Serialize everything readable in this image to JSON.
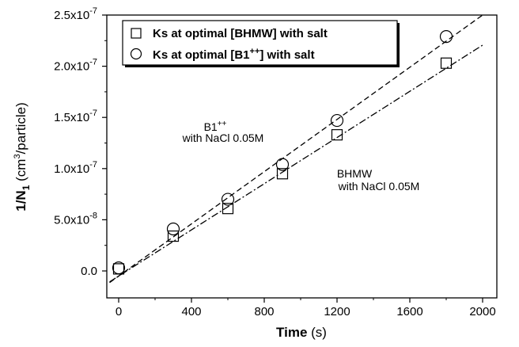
{
  "chart_data": {
    "type": "scatter",
    "xlabel_main": "Time",
    "xlabel_unit": " (s)",
    "ylabel_main": "1/N",
    "ylabel_sub": "1",
    "ylabel_unit_pre": " (cm",
    "ylabel_unit_sup": "3",
    "ylabel_unit_post": "/particle)",
    "xlim": [
      -50,
      2000
    ],
    "ylim": [
      -2.5e-08,
      2.5e-07
    ],
    "x_ticks": [
      0,
      400,
      800,
      1200,
      1600,
      2000
    ],
    "x_tick_labels": [
      "0",
      "400",
      "800",
      "1200",
      "1600",
      "2000"
    ],
    "y_ticks": [
      0,
      5e-08,
      1e-07,
      1.5e-07,
      2e-07,
      2.5e-07
    ],
    "y_tick_labels": [
      "0.0",
      "5.0x10",
      "1.0x10",
      "1.5x10",
      "2.0x10",
      "2.5x10"
    ],
    "y_tick_exponents": [
      "",
      "-8",
      "-7",
      "-7",
      "-7",
      "-7"
    ],
    "grid": false,
    "legend_position": "top-left",
    "series": [
      {
        "name": "Ks at optimal [BHMW] with salt",
        "marker": "square",
        "x": [
          0,
          300,
          600,
          900,
          1200,
          1800
        ],
        "y": [
          2e-09,
          3.4e-08,
          6.1e-08,
          9.5e-08,
          1.33e-07,
          2.03e-07
        ],
        "fit": {
          "style": "dash-dot",
          "intercept": -5e-09,
          "slope": 1.128e-10,
          "x_range": [
            -50,
            2000
          ]
        }
      },
      {
        "name": "Ks at optimal [B1++] with salt",
        "marker": "circle",
        "x": [
          0,
          300,
          600,
          900,
          1200,
          1800
        ],
        "y": [
          3e-09,
          4.1e-08,
          7e-08,
          1.04e-07,
          1.47e-07,
          2.29e-07
        ],
        "fit": {
          "style": "dashed",
          "intercept": -5e-09,
          "slope": 1.275e-10,
          "x_range": [
            -50,
            2000
          ]
        }
      }
    ],
    "legend": [
      {
        "prefix": "Ks at optimal [BHMW] with salt",
        "sup": "",
        "suffix": ""
      },
      {
        "prefix": "Ks at optimal [B1",
        "sup": "++",
        "suffix": "] with salt"
      }
    ],
    "annotations": [
      {
        "line1_main": "B1",
        "line1_sup": "++",
        "line2": "with NaCl 0.05M",
        "x": 990,
        "y": 1.65e-07
      },
      {
        "line1_main": "BHMW",
        "line1_sup": "",
        "line2": "with NaCl 0.05M",
        "x": 1530,
        "y": 1e-07
      }
    ]
  }
}
